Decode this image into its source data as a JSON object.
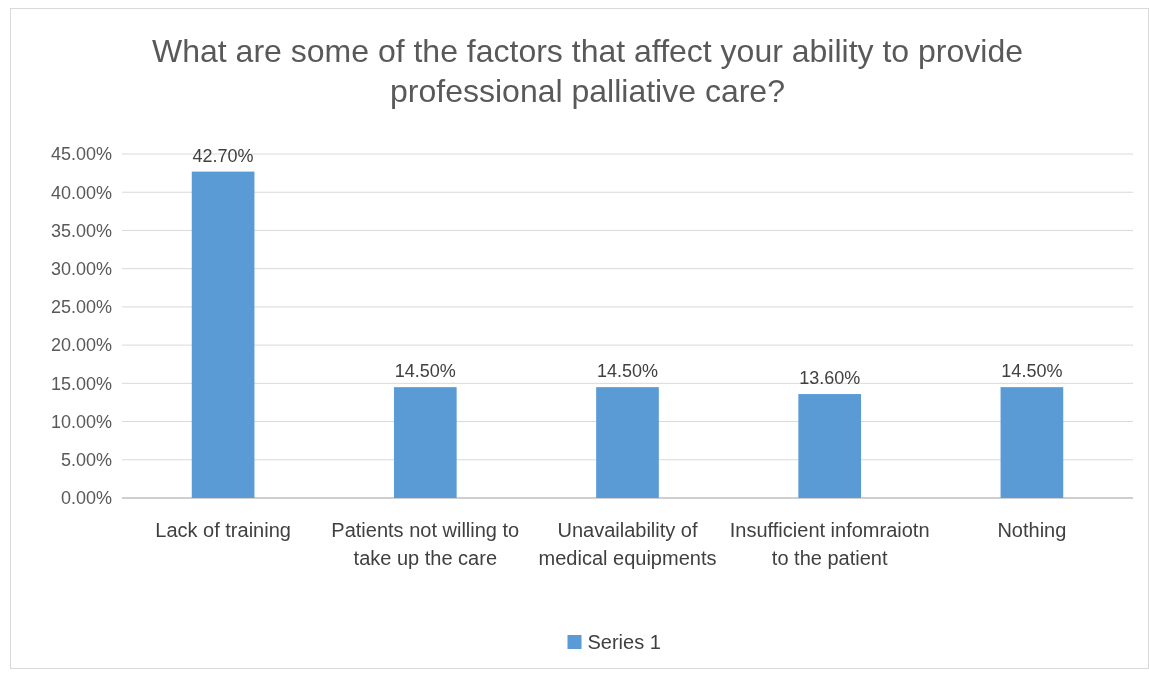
{
  "chart_data": {
    "type": "bar",
    "title": "What are some of the factors that affect your ability to provide professional palliative care?",
    "categories": [
      "Lack of training",
      "Patients not willing to take up the care",
      "Unavailability of medical equipments",
      "Insufficient infomraiotn to the patient",
      "Nothing"
    ],
    "series": [
      {
        "name": "Series 1",
        "color": "#5b9bd5",
        "values": [
          42.7,
          14.5,
          14.5,
          13.6,
          14.5
        ],
        "value_labels": [
          "42.70%",
          "14.50%",
          "14.50%",
          "13.60%",
          "14.50%"
        ]
      }
    ],
    "ylim": [
      0,
      45
    ],
    "yticks": [
      {
        "value": 0,
        "label": "0.00%"
      },
      {
        "value": 5,
        "label": "5.00%"
      },
      {
        "value": 10,
        "label": "10.00%"
      },
      {
        "value": 15,
        "label": "15.00%"
      },
      {
        "value": 20,
        "label": "20.00%"
      },
      {
        "value": 25,
        "label": "25.00%"
      },
      {
        "value": 30,
        "label": "30.00%"
      },
      {
        "value": 35,
        "label": "35.00%"
      },
      {
        "value": 40,
        "label": "40.00%"
      },
      {
        "value": 45,
        "label": "45.00%"
      }
    ],
    "grid": "y",
    "legend": "bottom"
  }
}
